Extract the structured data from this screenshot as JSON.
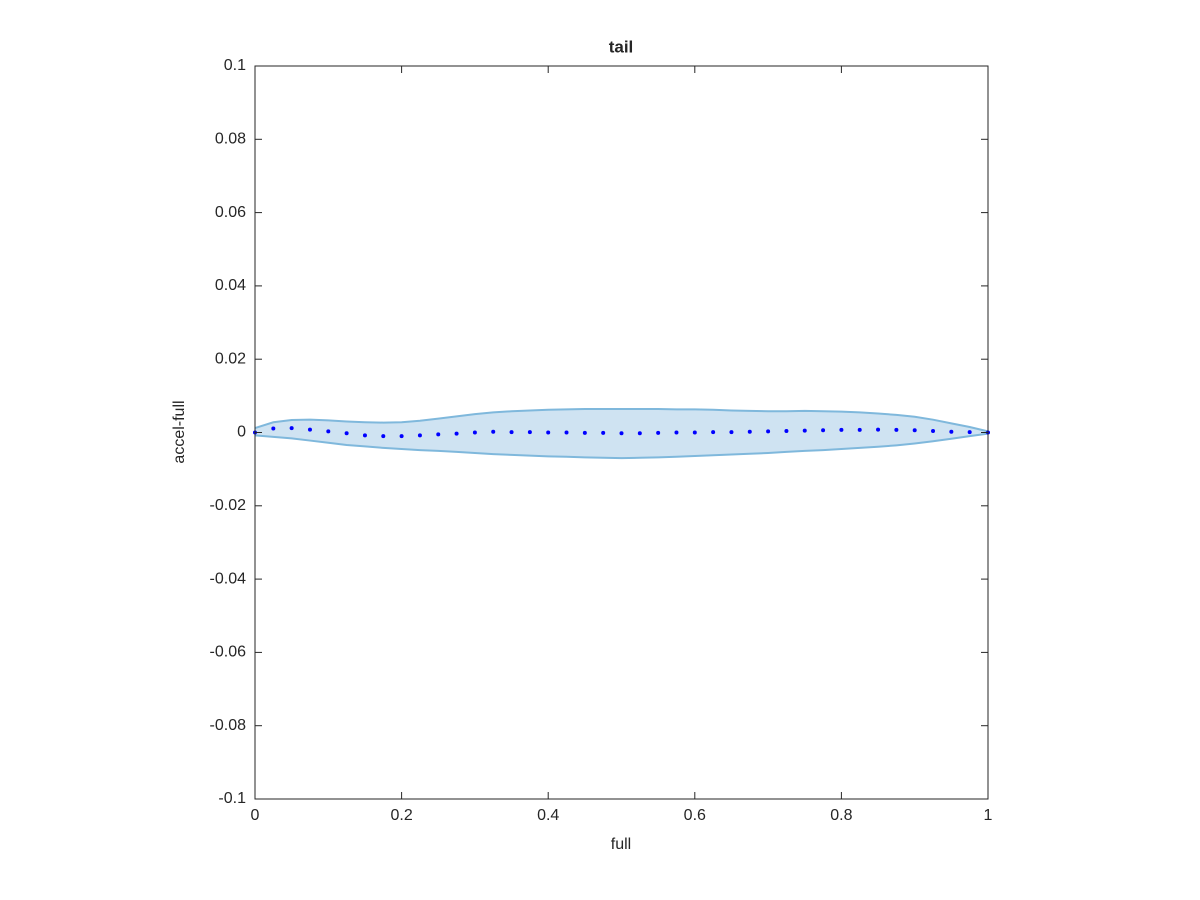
{
  "chart_data": {
    "type": "band-line",
    "title": "tail",
    "xlabel": "full",
    "ylabel": "accel-full",
    "xlim": [
      0,
      1
    ],
    "ylim": [
      -0.1,
      0.1
    ],
    "xticks": [
      0,
      0.2,
      0.4,
      0.6,
      0.8,
      1
    ],
    "yticks": [
      -0.1,
      -0.08,
      -0.06,
      -0.04,
      -0.02,
      0,
      0.02,
      0.04,
      0.06,
      0.08,
      0.1
    ],
    "x": [
      0,
      0.025,
      0.05,
      0.075,
      0.1,
      0.125,
      0.15,
      0.175,
      0.2,
      0.225,
      0.25,
      0.275,
      0.3,
      0.325,
      0.35,
      0.375,
      0.4,
      0.425,
      0.45,
      0.475,
      0.5,
      0.525,
      0.55,
      0.575,
      0.6,
      0.625,
      0.65,
      0.675,
      0.7,
      0.725,
      0.75,
      0.775,
      0.8,
      0.825,
      0.85,
      0.875,
      0.9,
      0.925,
      0.95,
      0.975,
      1
    ],
    "band": {
      "color": "#7fb8dc",
      "fill": "#cfe3f2",
      "upper": [
        0.0012,
        0.0028,
        0.0034,
        0.0035,
        0.0033,
        0.003,
        0.0028,
        0.0027,
        0.0028,
        0.0032,
        0.0038,
        0.0044,
        0.005,
        0.0055,
        0.0058,
        0.006,
        0.0062,
        0.0063,
        0.0064,
        0.0064,
        0.0064,
        0.0064,
        0.0064,
        0.0063,
        0.0063,
        0.0062,
        0.006,
        0.0059,
        0.0058,
        0.0058,
        0.0059,
        0.0058,
        0.0057,
        0.0055,
        0.0052,
        0.0048,
        0.0043,
        0.0035,
        0.0025,
        0.0015,
        0.0003
      ],
      "lower": [
        -0.0008,
        -0.0012,
        -0.0016,
        -0.0022,
        -0.0028,
        -0.0034,
        -0.0038,
        -0.0042,
        -0.0045,
        -0.0048,
        -0.005,
        -0.0053,
        -0.0056,
        -0.0059,
        -0.0061,
        -0.0063,
        -0.0065,
        -0.0066,
        -0.0068,
        -0.0069,
        -0.007,
        -0.0069,
        -0.0068,
        -0.0066,
        -0.0064,
        -0.0062,
        -0.006,
        -0.0058,
        -0.0056,
        -0.0053,
        -0.005,
        -0.0048,
        -0.0045,
        -0.0042,
        -0.0039,
        -0.0035,
        -0.003,
        -0.0024,
        -0.0017,
        -0.001,
        -0.0003
      ]
    },
    "series": [
      {
        "color": "#0000ff",
        "values": [
          0,
          0.0011,
          0.0012,
          0.0008,
          0.0003,
          -0.0002,
          -0.0008,
          -0.001,
          -0.001,
          -0.0008,
          -0.0005,
          -0.0003,
          0,
          0.0002,
          0.0001,
          0.0001,
          0,
          0,
          -0.0001,
          -0.0001,
          -0.0002,
          -0.0002,
          -0.0001,
          0,
          0,
          0.0001,
          0.0001,
          0.0002,
          0.0003,
          0.0004,
          0.0005,
          0.0006,
          0.0007,
          0.0007,
          0.0008,
          0.0007,
          0.0006,
          0.0004,
          0.0002,
          0.0001,
          0
        ]
      }
    ]
  }
}
